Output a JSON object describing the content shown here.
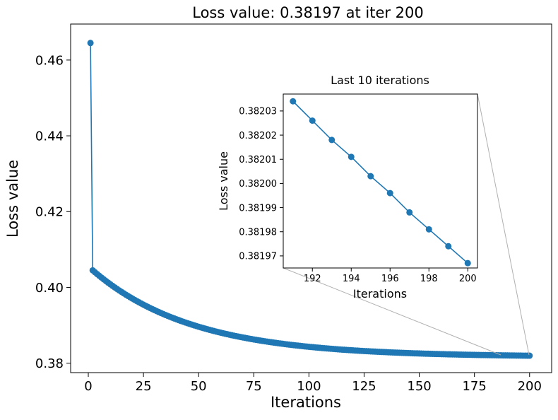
{
  "chart_data": [
    {
      "type": "line",
      "title": "Loss value: 0.38197 at iter 200",
      "xlabel": "Iterations",
      "ylabel": "Loss value",
      "xlim": [
        -8,
        210
      ],
      "ylim": [
        0.3775,
        0.4695
      ],
      "xticks": [
        0,
        25,
        50,
        75,
        100,
        125,
        150,
        175,
        200
      ],
      "yticks": [
        0.38,
        0.4,
        0.42,
        0.44,
        0.46
      ],
      "ytick_labels": [
        "0.38",
        "0.40",
        "0.42",
        "0.44",
        "0.46"
      ],
      "color": "#1f77b4",
      "grid": false,
      "series": [
        {
          "first_point": [
            1,
            0.4645
          ],
          "x_range": [
            2,
            200
          ],
          "start_value": 0.4045,
          "end_value": 0.38197,
          "shape": "exponential-decay"
        }
      ]
    },
    {
      "type": "line",
      "title": "Last 10 iterations",
      "xlabel": "Iterations",
      "ylabel": "Loss value",
      "xlim": [
        190.5,
        200.5
      ],
      "ylim": [
        0.381965,
        0.382037
      ],
      "xticks": [
        192,
        194,
        196,
        198,
        200
      ],
      "yticks": [
        0.38197,
        0.38198,
        0.38199,
        0.382,
        0.38201,
        0.38202,
        0.38203
      ],
      "ytick_labels": [
        "0.38197",
        "0.38198",
        "0.38199",
        "0.38200",
        "0.38201",
        "0.38202",
        "0.38203"
      ],
      "color": "#1f77b4",
      "grid": false,
      "series": [
        {
          "x": [
            191,
            192,
            193,
            194,
            195,
            196,
            197,
            198,
            199,
            200
          ],
          "y": [
            0.382034,
            0.382026,
            0.382018,
            0.382011,
            0.382003,
            0.381996,
            0.381988,
            0.381981,
            0.381974,
            0.381967
          ]
        }
      ]
    }
  ]
}
